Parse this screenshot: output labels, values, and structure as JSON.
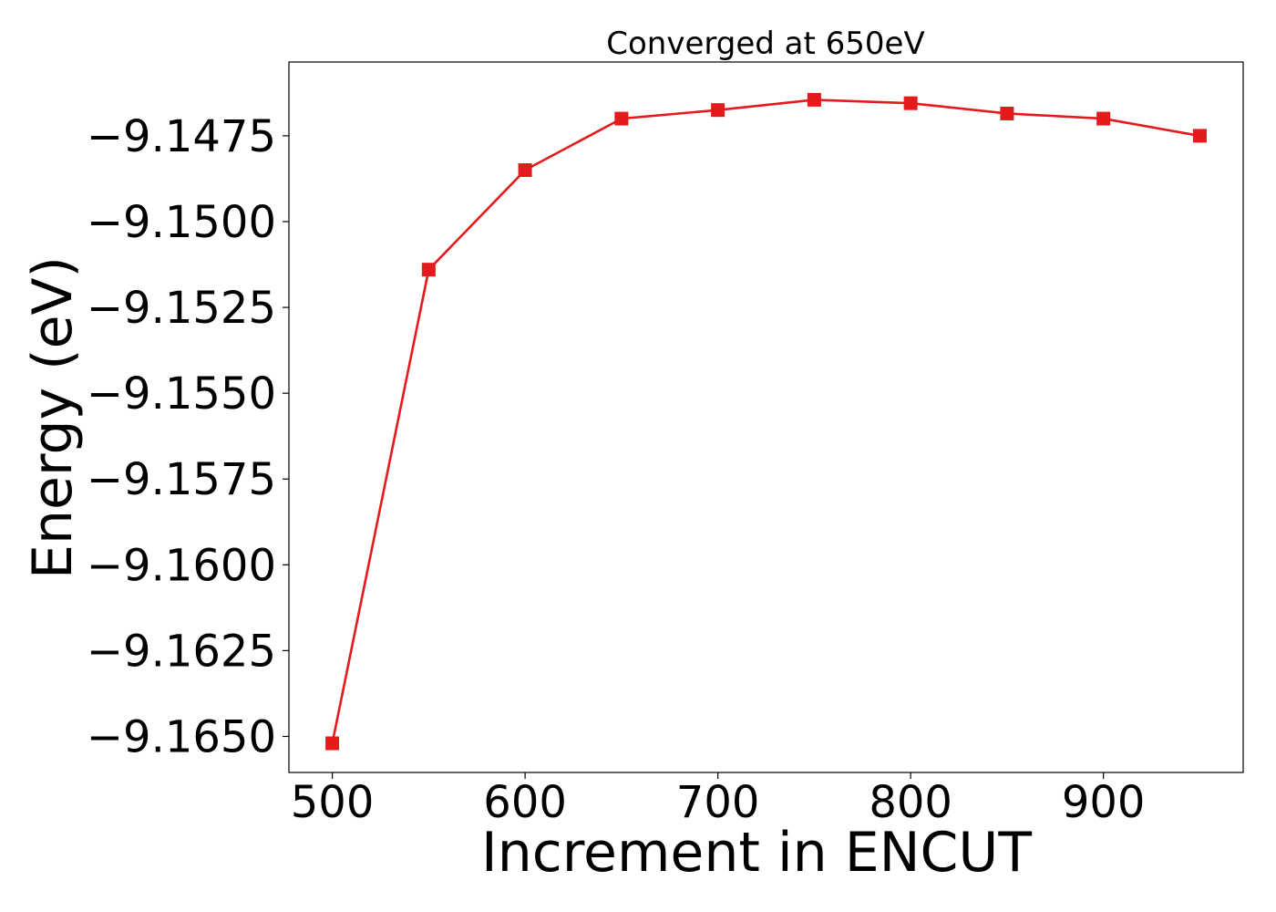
{
  "chart_data": {
    "type": "line",
    "title": "Converged at 650eV",
    "xlabel": "Increment in ENCUT",
    "ylabel": "Energy (eV)",
    "x": [
      500,
      550,
      600,
      650,
      700,
      750,
      800,
      850,
      900,
      950
    ],
    "series": [
      {
        "values": [
          -9.1652,
          -9.1514,
          -9.1485,
          -9.147,
          -9.14675,
          -9.14645,
          -9.14655,
          -9.14685,
          -9.147,
          -9.1475
        ],
        "color": "#e41a1c",
        "marker": "square"
      }
    ],
    "xlim": [
      477.5,
      972.5
    ],
    "ylim": [
      -9.16605,
      -9.14535
    ],
    "xticks": [
      500,
      600,
      700,
      800,
      900
    ],
    "xtick_labels": [
      "500",
      "600",
      "700",
      "800",
      "900"
    ],
    "yticks": [
      -9.165,
      -9.1625,
      -9.16,
      -9.1575,
      -9.155,
      -9.1525,
      -9.15,
      -9.1475
    ],
    "ytick_labels": [
      "−9.1650",
      "−9.1625",
      "−9.1600",
      "−9.1575",
      "−9.1550",
      "−9.1525",
      "−9.1500",
      "−9.1475"
    ],
    "grid": false,
    "legend": "none"
  }
}
